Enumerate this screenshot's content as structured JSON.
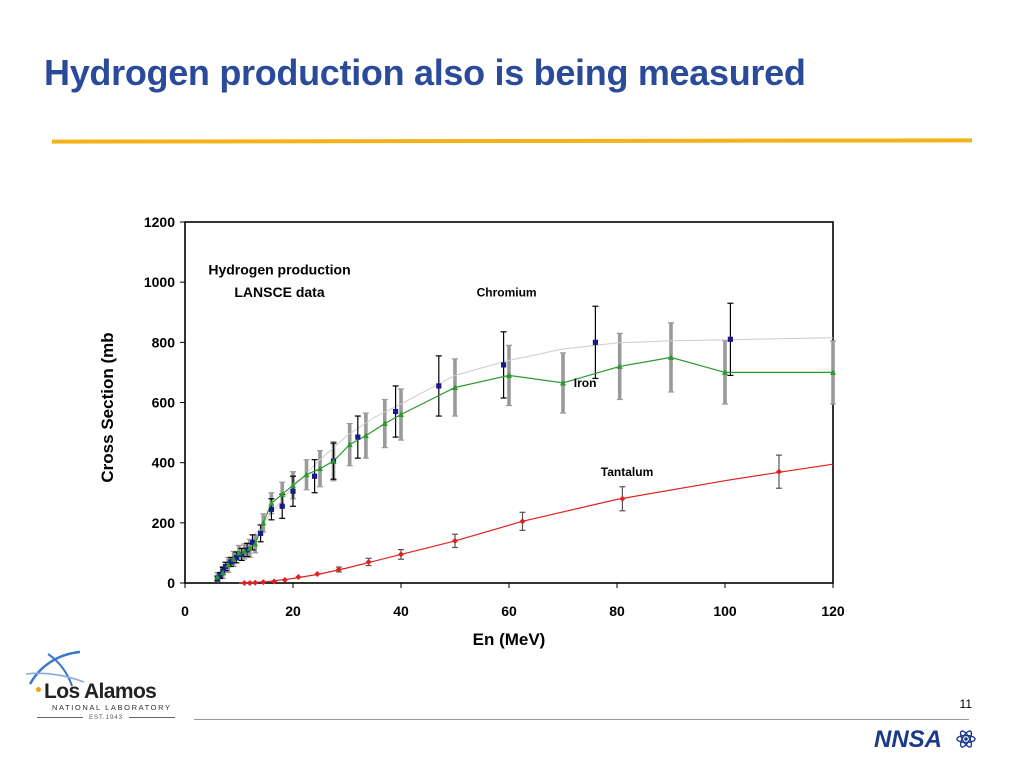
{
  "slide": {
    "title": "Hydrogen production also is being measured",
    "number": "11"
  },
  "logos": {
    "lab_name": "Los Alamos",
    "lab_subtitle": "NATIONAL LABORATORY",
    "lab_established": "EST.1943",
    "partner_text": "NNSA"
  },
  "colors": {
    "title": "#2a4a9a",
    "rule": "#f3b41a",
    "chromium": "#1a1a8c",
    "iron": "#2a9a2a",
    "tantalum": "#e02020",
    "iron_errorbar": "#9a9a9a",
    "chromium_curve": "#cccccc"
  },
  "chart_data": {
    "type": "scatter",
    "xlabel": "En (MeV)",
    "ylabel": "Cross Section (mb",
    "xlim": [
      0,
      120
    ],
    "ylim": [
      0,
      1200
    ],
    "xticks": [
      0,
      20,
      40,
      60,
      80,
      100,
      120
    ],
    "yticks": [
      0,
      200,
      400,
      600,
      800,
      1000,
      1200
    ],
    "grid": false,
    "legend": "none",
    "annotations": [
      {
        "text": "Hydrogen production",
        "x": 17.5,
        "y": 1025
      },
      {
        "text": "LANSCE data",
        "x": 17.5,
        "y": 950
      },
      {
        "text": "Chromium",
        "x": 54,
        "y": 952
      },
      {
        "text": "Iron",
        "x": 72,
        "y": 652
      },
      {
        "text": "Tantalum",
        "x": 77,
        "y": 355
      }
    ],
    "series": [
      {
        "name": "Chromium",
        "marker": "square",
        "x": [
          6,
          6.5,
          7,
          7.5,
          8.5,
          9.5,
          10.5,
          11.5,
          12.5,
          14,
          16,
          18,
          20,
          24,
          27.5,
          32,
          39,
          47,
          59,
          76,
          101
        ],
        "y": [
          15,
          25,
          40,
          55,
          70,
          85,
          95,
          110,
          135,
          165,
          245,
          255,
          305,
          355,
          405,
          485,
          570,
          655,
          725,
          800,
          810
        ],
        "err": [
          8,
          10,
          12,
          14,
          15,
          18,
          20,
          22,
          25,
          28,
          35,
          40,
          50,
          55,
          60,
          70,
          85,
          100,
          110,
          120,
          120
        ],
        "curve": {
          "x": [
            6,
            10,
            15,
            20,
            25,
            30,
            35,
            40,
            50,
            60,
            70,
            80,
            90,
            100,
            110,
            120
          ],
          "y": [
            15,
            90,
            210,
            320,
            410,
            490,
            550,
            595,
            690,
            740,
            778,
            798,
            805,
            808,
            812,
            815
          ]
        }
      },
      {
        "name": "Iron",
        "marker": "triangle",
        "x": [
          6,
          7,
          8,
          9,
          10,
          11,
          12,
          13,
          14.5,
          16,
          18,
          20,
          22.5,
          25,
          27.5,
          30.5,
          33.5,
          37,
          40,
          50,
          60,
          70,
          80.5,
          90,
          100,
          120
        ],
        "y": [
          20,
          35,
          60,
          80,
          100,
          105,
          115,
          130,
          200,
          265,
          295,
          325,
          360,
          380,
          405,
          460,
          490,
          530,
          560,
          650,
          690,
          665,
          720,
          750,
          700,
          700
        ],
        "err": [
          15,
          20,
          25,
          25,
          25,
          25,
          30,
          30,
          30,
          35,
          40,
          45,
          50,
          60,
          65,
          70,
          75,
          80,
          85,
          95,
          100,
          100,
          110,
          115,
          105,
          105
        ]
      },
      {
        "name": "Tantalum",
        "marker": "diamond",
        "x": [
          11,
          12,
          13,
          14.5,
          16.5,
          18.5,
          21,
          24.5,
          28.5,
          34,
          40,
          50,
          62.5,
          81,
          110
        ],
        "y": [
          0,
          0,
          1,
          3,
          5,
          10,
          20,
          30,
          45,
          70,
          95,
          140,
          205,
          280,
          370
        ],
        "err": [
          0,
          0,
          0,
          0,
          0,
          0,
          0,
          0,
          8,
          12,
          16,
          22,
          30,
          40,
          55
        ],
        "curve": {
          "x": [
            10,
            15,
            20,
            25,
            30,
            40,
            50,
            62.5,
            80,
            100,
            110,
            120
          ],
          "y": [
            0,
            4,
            15,
            30,
            50,
            95,
            140,
            205,
            278,
            340,
            368,
            395
          ]
        }
      }
    ]
  }
}
